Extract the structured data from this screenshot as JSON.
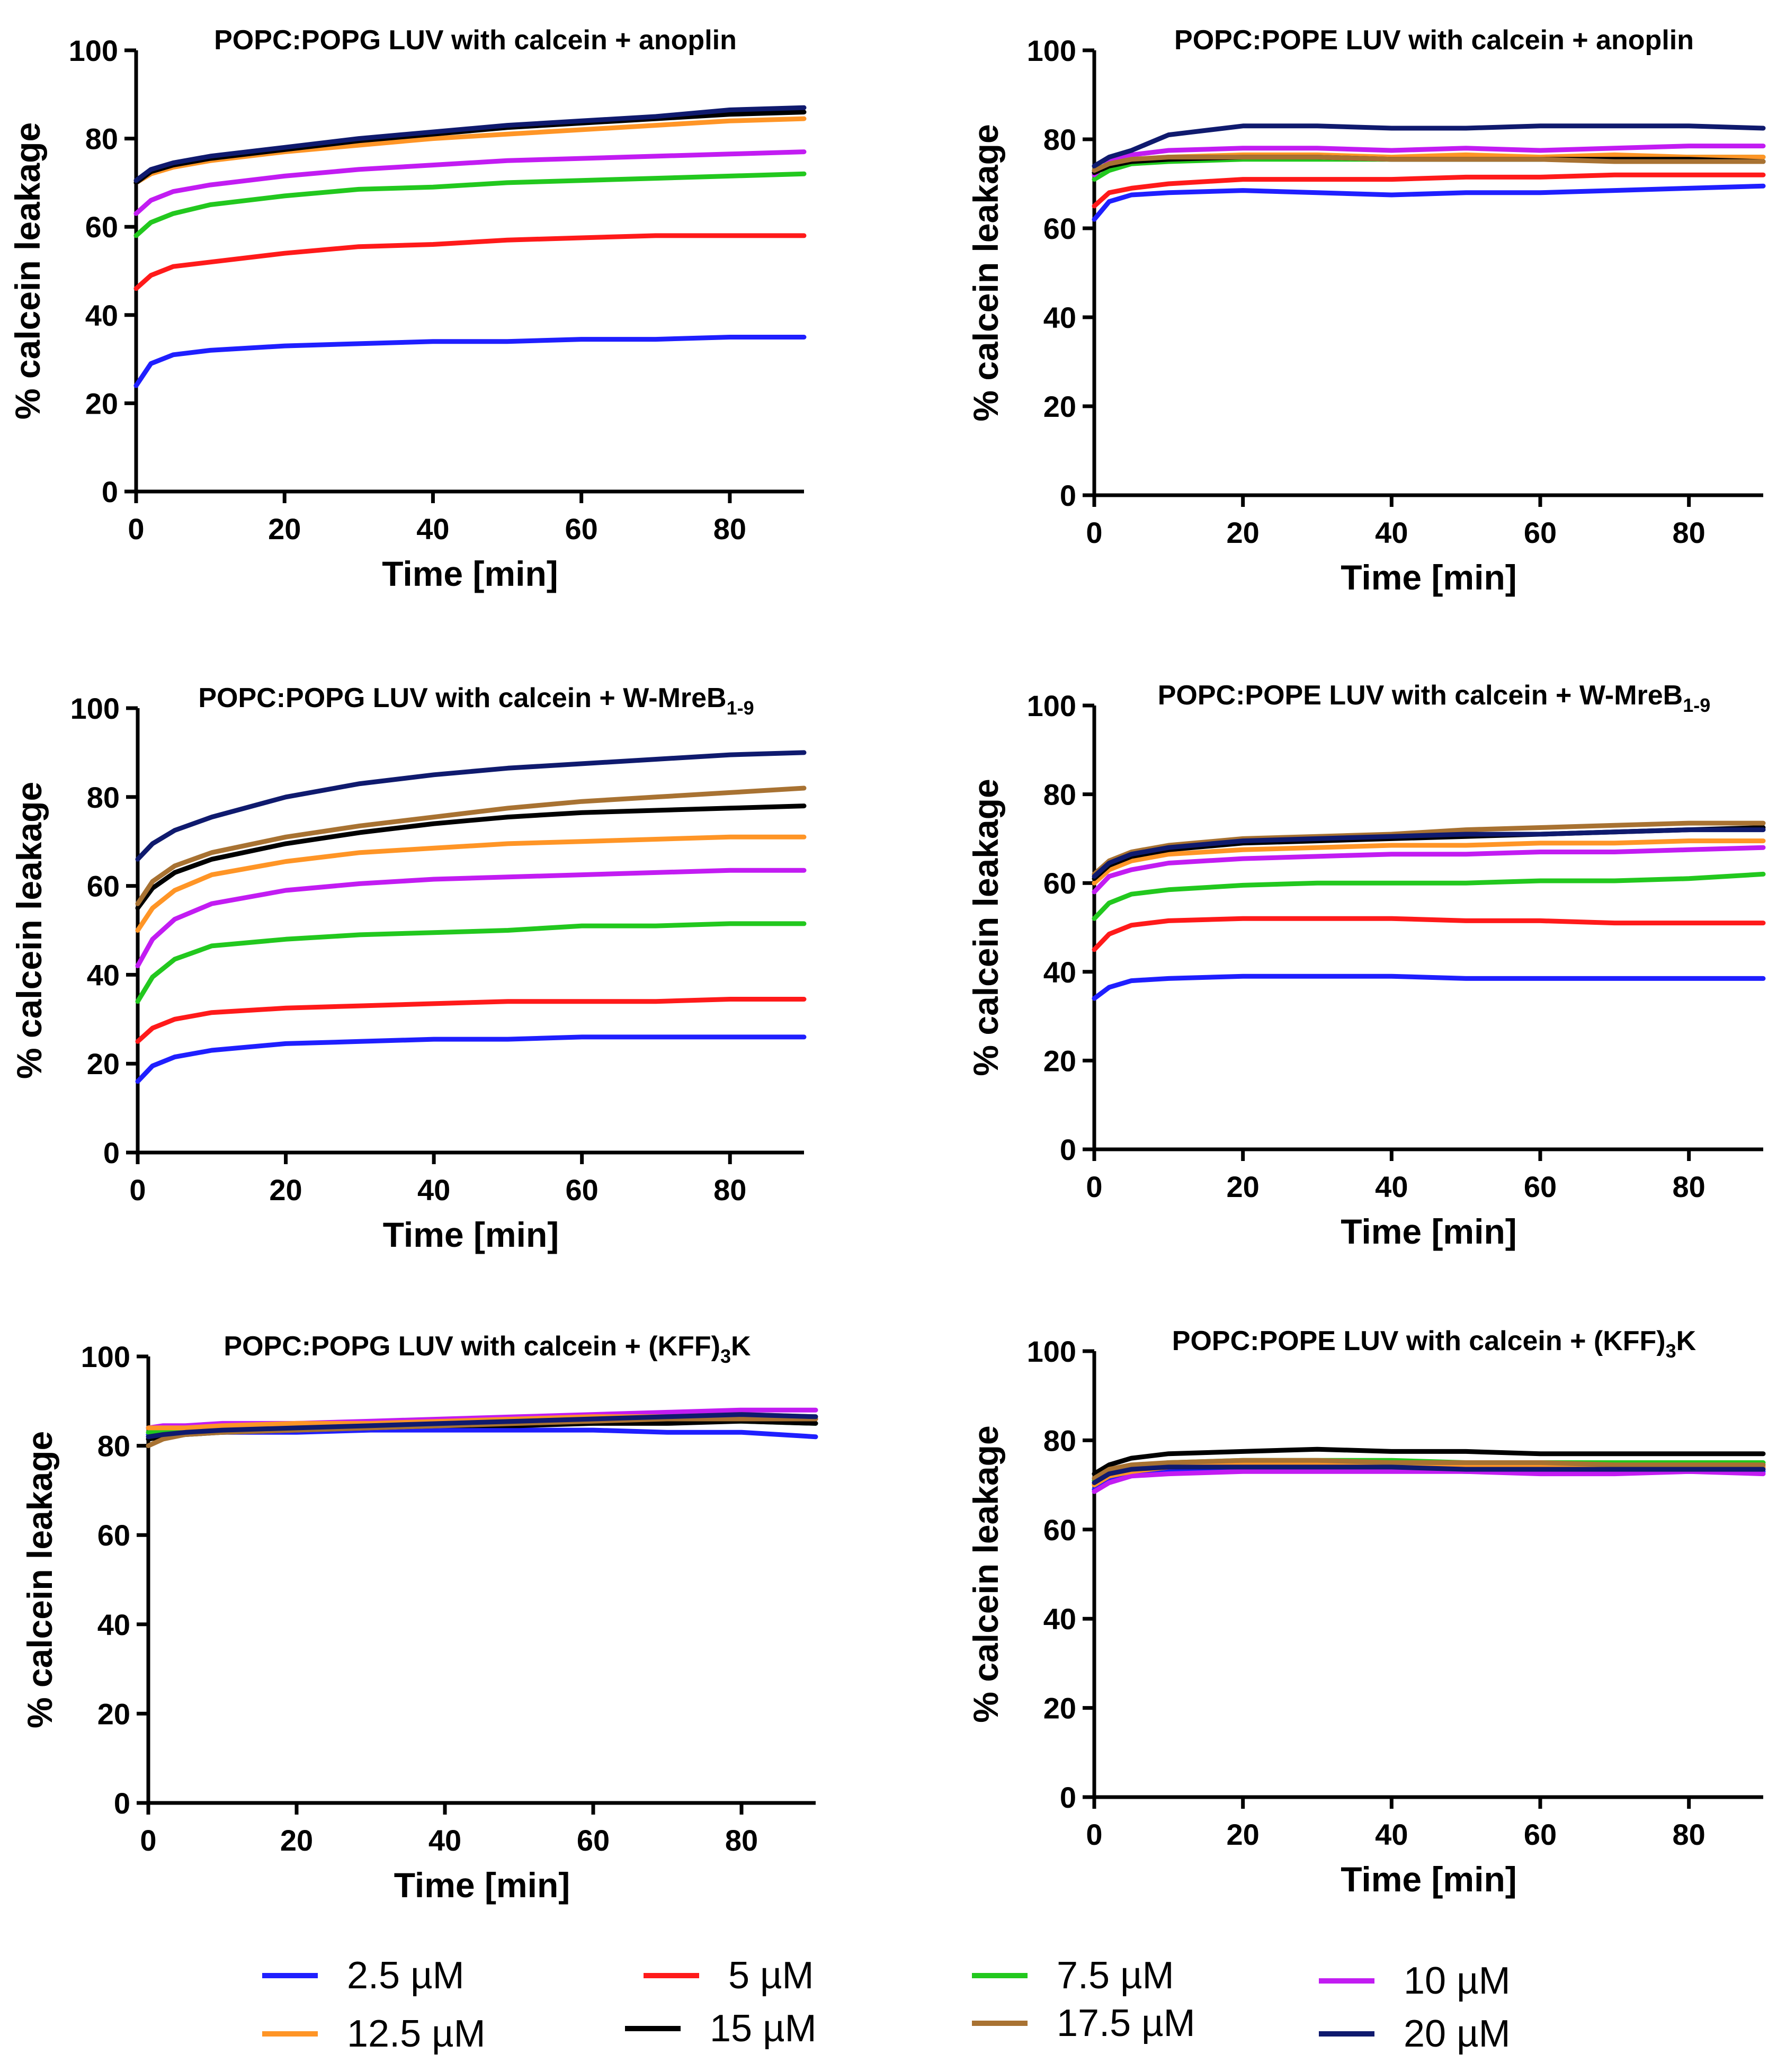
{
  "legend": [
    {
      "key": "s25",
      "label": "2.5 µM",
      "color": "#1f1fff"
    },
    {
      "key": "s5",
      "label": "5 µM",
      "color": "#ff1a1a"
    },
    {
      "key": "s75",
      "label": "7.5 µM",
      "color": "#22c81e"
    },
    {
      "key": "s10",
      "label": "10 µM",
      "color": "#c21cf2"
    },
    {
      "key": "s125",
      "label": "12.5 µM",
      "color": "#ff9526"
    },
    {
      "key": "s15",
      "label": "15 µM",
      "color": "#000000"
    },
    {
      "key": "s175",
      "label": "17.5 µM",
      "color": "#a87232"
    },
    {
      "key": "s20",
      "label": "20 µM",
      "color": "#0f1a6e"
    }
  ],
  "chart_data": [
    {
      "type": "line",
      "title": "POPC:POPG LUV with calcein + anoplin",
      "xlabel": "Time [min]",
      "ylabel": "% calcein leakage",
      "xlim": [
        0,
        90
      ],
      "ylim": [
        0,
        100
      ],
      "xticks": [
        0,
        20,
        40,
        60,
        80
      ],
      "yticks": [
        0,
        20,
        40,
        60,
        80,
        100
      ],
      "x": [
        0,
        2,
        5,
        10,
        20,
        30,
        40,
        50,
        60,
        70,
        80,
        90
      ],
      "series": [
        {
          "name": "2.5 µM",
          "values": [
            24,
            29,
            31,
            32,
            33,
            33.5,
            34,
            34,
            34.5,
            34.5,
            35,
            35
          ]
        },
        {
          "name": "5 µM",
          "values": [
            46,
            49,
            51,
            52,
            54,
            55.5,
            56,
            57,
            57.5,
            58,
            58,
            58
          ]
        },
        {
          "name": "7.5 µM",
          "values": [
            58,
            61,
            63,
            65,
            67,
            68.5,
            69,
            70,
            70.5,
            71,
            71.5,
            72
          ]
        },
        {
          "name": "10 µM",
          "values": [
            63,
            66,
            68,
            69.5,
            71.5,
            73,
            74,
            75,
            75.5,
            76,
            76.5,
            77
          ]
        },
        {
          "name": "12.5 µM",
          "values": [
            70,
            72,
            73.5,
            75,
            77,
            78.5,
            80,
            81,
            82,
            83,
            84,
            84.5
          ]
        },
        {
          "name": "15 µM",
          "values": [
            70,
            72.5,
            74,
            75.5,
            77.5,
            79.5,
            81,
            82.5,
            83.5,
            84.5,
            85.5,
            86
          ]
        },
        {
          "name": "20 µM",
          "values": [
            70.5,
            73,
            74.5,
            76,
            78,
            80,
            81.5,
            83,
            84,
            85,
            86.5,
            87
          ]
        }
      ]
    },
    {
      "type": "line",
      "title": "POPC:POPE LUV with calcein + anoplin",
      "xlabel": "Time [min]",
      "ylabel": "% calcein leakage",
      "xlim": [
        0,
        90
      ],
      "ylim": [
        0,
        100
      ],
      "xticks": [
        0,
        20,
        40,
        60,
        80
      ],
      "yticks": [
        0,
        20,
        40,
        60,
        80,
        100
      ],
      "x": [
        0,
        2,
        5,
        10,
        20,
        30,
        40,
        50,
        60,
        70,
        80,
        90
      ],
      "series": [
        {
          "name": "2.5 µM",
          "values": [
            62,
            66,
            67.5,
            68,
            68.5,
            68,
            67.5,
            68,
            68,
            68.5,
            69,
            69.5
          ]
        },
        {
          "name": "5 µM",
          "values": [
            65,
            68,
            69,
            70,
            71,
            71,
            71,
            71.5,
            71.5,
            72,
            72,
            72
          ]
        },
        {
          "name": "7.5 µM",
          "values": [
            71,
            73,
            74.5,
            75,
            75.5,
            75.5,
            75.5,
            75.5,
            75.5,
            75.5,
            76,
            76
          ]
        },
        {
          "name": "10 µM",
          "values": [
            72,
            75,
            76.5,
            77.5,
            78,
            78,
            77.5,
            78,
            77.5,
            78,
            78.5,
            78.5
          ]
        },
        {
          "name": "12.5 µM",
          "values": [
            73,
            74.5,
            75.5,
            76,
            76.5,
            76.5,
            76,
            76.5,
            76,
            76.5,
            76,
            76
          ]
        },
        {
          "name": "15 µM",
          "values": [
            72.5,
            74,
            75,
            75.5,
            76,
            76,
            75.5,
            75.5,
            75.5,
            75.5,
            75.5,
            75
          ]
        },
        {
          "name": "17.5 µM",
          "values": [
            73,
            74.5,
            75.5,
            76,
            76,
            76,
            75.5,
            75.5,
            75.5,
            75,
            75,
            75
          ]
        },
        {
          "name": "20 µM",
          "values": [
            74,
            76,
            77.5,
            81,
            83,
            83,
            82.5,
            82.5,
            83,
            83,
            83,
            82.5
          ]
        }
      ]
    },
    {
      "type": "line",
      "title": "POPC:POPG LUV with calcein + W-MreB",
      "title_subscript": "1-9",
      "xlabel": "Time [min]",
      "ylabel": "% calcein leakage",
      "xlim": [
        0,
        90
      ],
      "ylim": [
        0,
        100
      ],
      "xticks": [
        0,
        20,
        40,
        60,
        80
      ],
      "yticks": [
        0,
        20,
        40,
        60,
        80,
        100
      ],
      "x": [
        0,
        2,
        5,
        10,
        20,
        30,
        40,
        50,
        60,
        70,
        80,
        90
      ],
      "series": [
        {
          "name": "2.5 µM",
          "values": [
            16,
            19.5,
            21.5,
            23,
            24.5,
            25,
            25.5,
            25.5,
            26,
            26,
            26,
            26
          ]
        },
        {
          "name": "5 µM",
          "values": [
            25,
            28,
            30,
            31.5,
            32.5,
            33,
            33.5,
            34,
            34,
            34,
            34.5,
            34.5
          ]
        },
        {
          "name": "7.5 µM",
          "values": [
            34,
            39.5,
            43.5,
            46.5,
            48,
            49,
            49.5,
            50,
            51,
            51,
            51.5,
            51.5
          ]
        },
        {
          "name": "10 µM",
          "values": [
            42,
            48,
            52.5,
            56,
            59,
            60.5,
            61.5,
            62,
            62.5,
            63,
            63.5,
            63.5
          ]
        },
        {
          "name": "12.5 µM",
          "values": [
            50,
            55,
            59,
            62.5,
            65.5,
            67.5,
            68.5,
            69.5,
            70,
            70.5,
            71,
            71
          ]
        },
        {
          "name": "15 µM",
          "values": [
            55,
            59.5,
            63,
            66,
            69.5,
            72,
            74,
            75.5,
            76.5,
            77,
            77.5,
            78
          ]
        },
        {
          "name": "17.5 µM",
          "values": [
            56,
            61,
            64.5,
            67.5,
            71,
            73.5,
            75.5,
            77.5,
            79,
            80,
            81,
            82
          ]
        },
        {
          "name": "20 µM",
          "values": [
            66,
            69.5,
            72.5,
            75.5,
            80,
            83,
            85,
            86.5,
            87.5,
            88.5,
            89.5,
            90
          ]
        }
      ]
    },
    {
      "type": "line",
      "title": "POPC:POPE LUV with calcein + W-MreB",
      "title_subscript": "1-9",
      "xlabel": "Time [min]",
      "ylabel": "% calcein leakage",
      "xlim": [
        0,
        90
      ],
      "ylim": [
        0,
        100
      ],
      "xticks": [
        0,
        20,
        40,
        60,
        80
      ],
      "yticks": [
        0,
        20,
        40,
        60,
        80,
        100
      ],
      "x": [
        0,
        2,
        5,
        10,
        20,
        30,
        40,
        50,
        60,
        70,
        80,
        90
      ],
      "series": [
        {
          "name": "2.5 µM",
          "values": [
            34,
            36.5,
            38,
            38.5,
            39,
            39,
            39,
            38.5,
            38.5,
            38.5,
            38.5,
            38.5
          ]
        },
        {
          "name": "5 µM",
          "values": [
            45,
            48.5,
            50.5,
            51.5,
            52,
            52,
            52,
            51.5,
            51.5,
            51,
            51,
            51
          ]
        },
        {
          "name": "7.5 µM",
          "values": [
            52,
            55.5,
            57.5,
            58.5,
            59.5,
            60,
            60,
            60,
            60.5,
            60.5,
            61,
            62
          ]
        },
        {
          "name": "10 µM",
          "values": [
            58,
            61.5,
            63,
            64.5,
            65.5,
            66,
            66.5,
            66.5,
            67,
            67,
            67.5,
            68
          ]
        },
        {
          "name": "12.5 µM",
          "values": [
            60,
            63,
            65,
            66.5,
            67.5,
            68,
            68.5,
            68.5,
            69,
            69,
            69.5,
            69.5
          ]
        },
        {
          "name": "15 µM",
          "values": [
            61,
            64,
            66,
            67.5,
            69,
            69.5,
            70,
            70.5,
            71,
            71.5,
            72,
            72.5
          ]
        },
        {
          "name": "17.5 µM",
          "values": [
            62,
            65,
            67,
            68.5,
            70,
            70.5,
            71,
            72,
            72.5,
            73,
            73.5,
            73.5
          ]
        },
        {
          "name": "20 µM",
          "values": [
            61.5,
            64.5,
            66.5,
            68,
            69.5,
            70,
            70.5,
            71,
            71,
            71.5,
            72,
            72
          ]
        }
      ]
    },
    {
      "type": "line",
      "title": "POPC:POPG LUV with calcein + (KFF)",
      "title_subscript": "3",
      "title_suffix": "K",
      "xlabel": "Time [min]",
      "ylabel": "% calcein leakage",
      "xlim": [
        0,
        90
      ],
      "ylim": [
        0,
        100
      ],
      "xticks": [
        0,
        20,
        40,
        60,
        80
      ],
      "yticks": [
        0,
        20,
        40,
        60,
        80,
        100
      ],
      "x": [
        0,
        2,
        5,
        10,
        20,
        30,
        40,
        50,
        60,
        70,
        80,
        90
      ],
      "series": [
        {
          "name": "2.5 µM",
          "values": [
            82.5,
            83,
            83,
            83,
            83,
            83.5,
            83.5,
            83.5,
            83.5,
            83,
            83,
            82
          ]
        },
        {
          "name": "5 µM",
          "values": [
            84,
            84,
            84,
            84.5,
            85,
            85,
            85.5,
            85.5,
            86,
            86,
            86.5,
            86
          ]
        },
        {
          "name": "7.5 µM",
          "values": [
            83,
            83,
            83.5,
            84,
            84,
            84.5,
            85,
            85,
            85,
            85.5,
            85.5,
            85
          ]
        },
        {
          "name": "10 µM",
          "values": [
            84,
            84.5,
            84.5,
            85,
            85,
            85.5,
            86,
            86.5,
            87,
            87.5,
            88,
            88
          ]
        },
        {
          "name": "12.5 µM",
          "values": [
            84,
            84,
            84,
            84.5,
            85,
            85,
            85.5,
            86,
            86.5,
            86.5,
            87,
            86.5
          ]
        },
        {
          "name": "15 µM",
          "values": [
            81.5,
            82,
            82.5,
            83,
            83.5,
            84,
            84.5,
            84.5,
            85,
            85,
            85.5,
            85
          ]
        },
        {
          "name": "17.5 µM",
          "values": [
            80,
            81.5,
            82.5,
            83,
            83.5,
            84,
            84.5,
            85,
            85.5,
            86,
            86,
            86
          ]
        },
        {
          "name": "20 µM",
          "values": [
            82,
            82.5,
            83,
            83.5,
            84,
            84.5,
            85,
            85.5,
            86,
            86.5,
            87,
            86.5
          ]
        }
      ]
    },
    {
      "type": "line",
      "title": "POPC:POPE LUV with calcein + (KFF)",
      "title_subscript": "3",
      "title_suffix": "K",
      "xlabel": "Time [min]",
      "ylabel": "% calcein leakage",
      "xlim": [
        0,
        90
      ],
      "ylim": [
        0,
        100
      ],
      "xticks": [
        0,
        20,
        40,
        60,
        80
      ],
      "yticks": [
        0,
        20,
        40,
        60,
        80,
        100
      ],
      "x": [
        0,
        2,
        5,
        10,
        20,
        30,
        40,
        50,
        60,
        70,
        80,
        90
      ],
      "series": [
        {
          "name": "2.5 µM",
          "values": [
            69,
            71.5,
            72.5,
            73,
            73.5,
            73.5,
            73.5,
            73,
            73,
            73,
            73,
            73
          ]
        },
        {
          "name": "5 µM",
          "values": [
            70,
            72,
            73,
            74,
            74.5,
            74.5,
            74.5,
            74,
            74,
            74,
            74,
            74
          ]
        },
        {
          "name": "7.5 µM",
          "values": [
            71,
            73,
            74,
            75,
            75.5,
            75.5,
            75.5,
            75,
            75,
            75,
            75,
            75
          ]
        },
        {
          "name": "10 µM",
          "values": [
            68.5,
            70.5,
            72,
            72.5,
            73,
            73,
            73,
            73,
            72.5,
            72.5,
            73,
            72.5
          ]
        },
        {
          "name": "12.5 µM",
          "values": [
            70,
            72,
            73,
            74,
            74.5,
            74.5,
            74.5,
            74,
            74,
            74,
            74,
            74
          ]
        },
        {
          "name": "15 µM",
          "values": [
            72.5,
            74.5,
            76,
            77,
            77.5,
            78,
            77.5,
            77.5,
            77,
            77,
            77,
            77
          ]
        },
        {
          "name": "17.5 µM",
          "values": [
            71.5,
            73.5,
            74.5,
            75,
            75.5,
            75.5,
            75,
            75,
            75,
            74.5,
            74.5,
            74.5
          ]
        },
        {
          "name": "20 µM",
          "values": [
            70.5,
            72.5,
            73.5,
            74,
            74,
            74,
            74,
            73.5,
            73.5,
            73.5,
            73.5,
            73.5
          ]
        }
      ]
    }
  ]
}
